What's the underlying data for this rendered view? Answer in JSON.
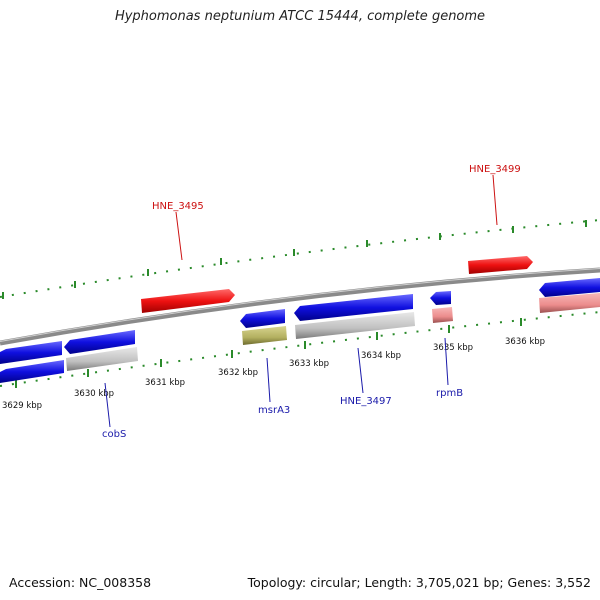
{
  "title": "Hyphomonas neptunium ATCC 15444, complete genome",
  "footer": {
    "accession": "Accession: NC_008358",
    "topology": "Topology: circular; Length: 3,705,021 bp; Genes: 3,552"
  },
  "colors": {
    "cds_forward": "#1010e0",
    "cds_reverse": "#1010e0",
    "rna": "#c0c0c0",
    "pseudo": "#b3b060",
    "highlight": "#ee1111",
    "rrna": "#ec8c8c",
    "backbone": "#8a8a8a",
    "ticks": "#2a8a2a",
    "label_blue": "#1a1aaa",
    "label_red": "#cc1111"
  },
  "scale": {
    "unit": "kbp",
    "ticks": [
      {
        "label": "3629 kbp",
        "kbp": 3629
      },
      {
        "label": "3630 kbp",
        "kbp": 3630
      },
      {
        "label": "3631 kbp",
        "kbp": 3631
      },
      {
        "label": "3632 kbp",
        "kbp": 3632
      },
      {
        "label": "3633 kbp",
        "kbp": 3633
      },
      {
        "label": "3634 kbp",
        "kbp": 3634
      },
      {
        "label": "3635 kbp",
        "kbp": 3635
      },
      {
        "label": "3636 kbp",
        "kbp": 3636
      }
    ]
  },
  "gene_labels": [
    {
      "name": "HNE_3495",
      "color": "red"
    },
    {
      "name": "HNE_3499",
      "color": "red"
    },
    {
      "name": "cobS",
      "color": "blue"
    },
    {
      "name": "msrA3",
      "color": "blue"
    },
    {
      "name": "HNE_3497",
      "color": "blue"
    },
    {
      "name": "rpmB",
      "color": "blue"
    }
  ]
}
